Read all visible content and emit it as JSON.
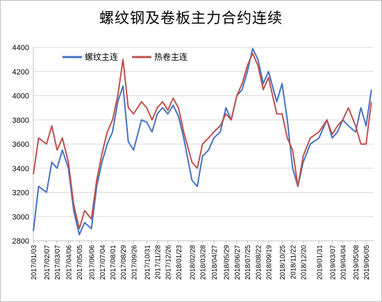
{
  "chart_data": {
    "type": "line",
    "title": "螺纹钢及卷板主力合约连续",
    "xlabel": "",
    "ylabel": "",
    "ylim": [
      2800,
      4400
    ],
    "yticks": [
      2800,
      3000,
      3200,
      3400,
      3600,
      3800,
      4000,
      4200,
      4400
    ],
    "grid": true,
    "legend_position": "top-left",
    "x_tick_labels": [
      "2017/01/03",
      "2017/02/07",
      "2017/03/07",
      "2017/04/06",
      "2017/05/05",
      "2017/06/06",
      "2017/07/04",
      "2017/08/01",
      "2017/08/29",
      "2017/09/26",
      "2017/10/31",
      "2017/11/28",
      "2017/12/26",
      "2018/01/23",
      "2018/02/28",
      "2018/03/28",
      "2018/04/27",
      "2018/05/29",
      "2018/06/27",
      "2018/07/25",
      "2018/08/22",
      "2018/09/19",
      "2018/10/25",
      "2018/11/22",
      "2018/12/20",
      "2019/01/31",
      "2019/03/07",
      "2019/04/04",
      "2019/05/08",
      "2019/06/05"
    ],
    "x": [
      "2017/01/03",
      "2017/01/17",
      "2017/02/07",
      "2017/02/21",
      "2017/03/07",
      "2017/03/21",
      "2017/04/06",
      "2017/04/20",
      "2017/05/05",
      "2017/05/19",
      "2017/06/06",
      "2017/06/20",
      "2017/07/04",
      "2017/07/18",
      "2017/08/01",
      "2017/08/15",
      "2017/08/29",
      "2017/09/12",
      "2017/09/26",
      "2017/10/17",
      "2017/10/31",
      "2017/11/14",
      "2017/11/28",
      "2017/12/12",
      "2017/12/26",
      "2018/01/09",
      "2018/01/23",
      "2018/02/06",
      "2018/02/28",
      "2018/03/14",
      "2018/03/28",
      "2018/04/13",
      "2018/04/27",
      "2018/05/14",
      "2018/05/29",
      "2018/06/12",
      "2018/06/27",
      "2018/07/11",
      "2018/07/25",
      "2018/08/08",
      "2018/08/22",
      "2018/09/05",
      "2018/09/19",
      "2018/10/11",
      "2018/10/25",
      "2018/11/08",
      "2018/11/22",
      "2018/12/06",
      "2018/12/20",
      "2019/01/08",
      "2019/01/31",
      "2019/02/21",
      "2019/03/07",
      "2019/03/21",
      "2019/04/04",
      "2019/04/19",
      "2019/05/08",
      "2019/05/22",
      "2019/06/05",
      "2019/06/19"
    ],
    "series": [
      {
        "name": "螺纹主连",
        "color": "#4472c4",
        "values": [
          2880,
          3250,
          3200,
          3450,
          3400,
          3550,
          3400,
          3050,
          2850,
          2950,
          2900,
          3250,
          3450,
          3600,
          3700,
          3950,
          4080,
          3620,
          3550,
          3800,
          3780,
          3700,
          3850,
          3900,
          3850,
          3920,
          3830,
          3650,
          3300,
          3250,
          3500,
          3550,
          3650,
          3700,
          3900,
          3800,
          4000,
          4050,
          4200,
          4390,
          4300,
          4100,
          4200,
          3950,
          4100,
          3800,
          3400,
          3250,
          3450,
          3600,
          3650,
          3800,
          3650,
          3700,
          3800,
          3750,
          3700,
          3900,
          3750,
          4050
        ]
      },
      {
        "name": "热卷主连",
        "color": "#c0504d",
        "values": [
          3350,
          3650,
          3600,
          3750,
          3550,
          3650,
          3450,
          3100,
          2900,
          3050,
          2980,
          3300,
          3520,
          3700,
          3800,
          4000,
          4300,
          3900,
          3850,
          3950,
          3900,
          3800,
          3900,
          3950,
          3880,
          3980,
          3900,
          3700,
          3450,
          3400,
          3600,
          3650,
          3700,
          3750,
          3850,
          3800,
          4000,
          4100,
          4250,
          4350,
          4250,
          4050,
          4150,
          3850,
          3850,
          3650,
          3550,
          3250,
          3500,
          3650,
          3700,
          3800,
          3680,
          3750,
          3800,
          3900,
          3750,
          3600,
          3600,
          3950
        ]
      }
    ]
  }
}
